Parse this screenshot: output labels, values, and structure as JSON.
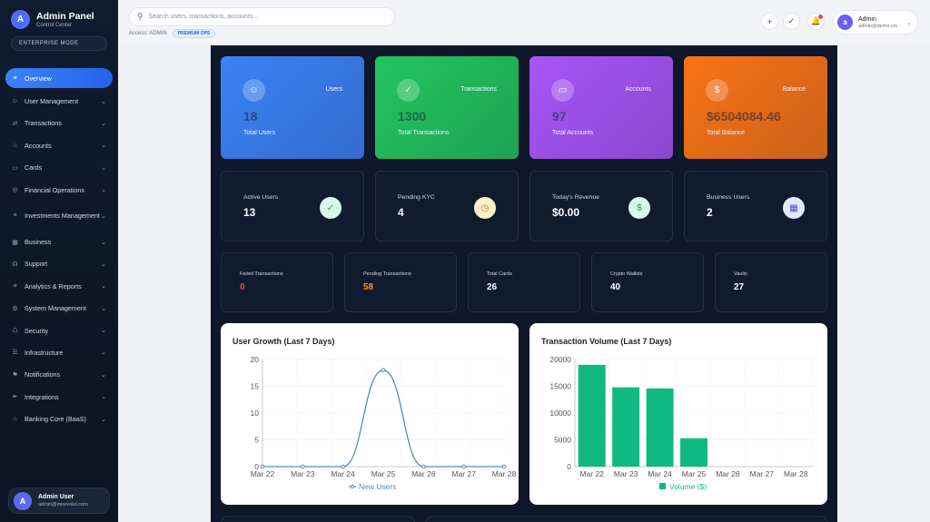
{
  "brand": {
    "logo_letter": "A",
    "title": "Admin Panel",
    "subtitle": "Control Center",
    "mode": "ENTERPRISE MODE"
  },
  "sidebar": {
    "items": [
      {
        "label": "Overview",
        "icon": "chart-icon",
        "active": true,
        "chevron": false
      },
      {
        "label": "User Management",
        "icon": "users-icon",
        "chevron": true
      },
      {
        "label": "Transactions",
        "icon": "exchange-icon",
        "chevron": true
      },
      {
        "label": "Accounts",
        "icon": "bank-icon",
        "chevron": true
      },
      {
        "label": "Cards",
        "icon": "card-icon",
        "chevron": true
      },
      {
        "label": "Financial Operations",
        "icon": "coins-icon",
        "chevron": true
      },
      {
        "label": "Investments Management",
        "icon": "chart-icon",
        "chevron": true,
        "tall": true
      },
      {
        "label": "Business",
        "icon": "building-icon",
        "chevron": true
      },
      {
        "label": "Support",
        "icon": "headset-icon",
        "chevron": true
      },
      {
        "label": "Analytics & Reports",
        "icon": "chart-icon",
        "chevron": true
      },
      {
        "label": "System Management",
        "icon": "gear-icon",
        "chevron": true
      },
      {
        "label": "Security",
        "icon": "lock-icon",
        "chevron": true
      },
      {
        "label": "Infrastructure",
        "icon": "server-icon",
        "chevron": true
      },
      {
        "label": "Notifications",
        "icon": "bell-icon",
        "chevron": true
      },
      {
        "label": "Integrations",
        "icon": "plug-icon",
        "chevron": true
      },
      {
        "label": "Banking Core (BaaS)",
        "icon": "bank-icon",
        "chevron": true
      }
    ],
    "user": {
      "avatar_letter": "A",
      "name": "Admin User",
      "email": "admin@mirevolut.com"
    }
  },
  "topbar": {
    "search_placeholder": "Search users, transactions, accounts...",
    "access_text": "Access: ADMIN",
    "ops_badge": "PREMIUM OPS",
    "admin": {
      "avatar_letter": "a",
      "name": "Admin",
      "email": "admin@demo.sm"
    }
  },
  "stats": [
    {
      "label": "Users",
      "value": "18",
      "sub": "Total Users",
      "icon": "users-icon",
      "color": "#3b82f6"
    },
    {
      "label": "Transactions",
      "value": "1300",
      "sub": "Total Transactions",
      "icon": "check-circle-icon",
      "color": "#22c55e"
    },
    {
      "label": "Accounts",
      "value": "97",
      "sub": "Total Accounts",
      "icon": "card-icon",
      "color": "#a855f7"
    },
    {
      "label": "Balance",
      "value": "$6504084.46",
      "sub": "Total Balance",
      "icon": "dollar-icon",
      "color": "#f97316"
    }
  ],
  "mid_stats": [
    {
      "label": "Active Users",
      "value": "13",
      "icon": "check-circle-icon",
      "icon_bg": "#d9f7e6",
      "icon_color": "#16a34a"
    },
    {
      "label": "Pending KYC",
      "value": "4",
      "icon": "clock-icon",
      "icon_bg": "#fdf0c4",
      "icon_color": "#b7791f"
    },
    {
      "label": "Today's Revenue",
      "value": "$0.00",
      "icon": "dollar-icon",
      "icon_bg": "#d9f7e6",
      "icon_color": "#16a34a"
    },
    {
      "label": "Business Users",
      "value": "2",
      "icon": "building-icon",
      "icon_bg": "#e3e8ff",
      "icon_color": "#4f46e5"
    }
  ],
  "small_stats": [
    {
      "label": "Failed Transactions",
      "value": "0",
      "color": "#ef4444"
    },
    {
      "label": "Pending Transactions",
      "value": "58",
      "color": "#f59e0b"
    },
    {
      "label": "Total Cards",
      "value": "26",
      "color": "#ffffff"
    },
    {
      "label": "Crypto Wallets",
      "value": "40",
      "color": "#ffffff"
    },
    {
      "label": "Vaults",
      "value": "27",
      "color": "#ffffff"
    }
  ],
  "chart_data": [
    {
      "type": "line",
      "title": "User Growth (Last 7 Days)",
      "categories": [
        "Mar 22",
        "Mar 23",
        "Mar 24",
        "Mar 25",
        "Mar 26",
        "Mar 27",
        "Mar 28"
      ],
      "series": [
        {
          "name": "New Users",
          "values": [
            0,
            0,
            0,
            18,
            0,
            0,
            0
          ],
          "color": "#4a90c8"
        }
      ],
      "ylim": [
        0,
        20
      ],
      "yticks": [
        0,
        5,
        10,
        15,
        20
      ],
      "grid": true,
      "legend": "bottom"
    },
    {
      "type": "bar",
      "title": "Transaction Volume (Last 7 Days)",
      "categories": [
        "Mar 22",
        "Mar 23",
        "Mar 24",
        "Mar 25",
        "Mar 26",
        "Mar 27",
        "Mar 28"
      ],
      "series": [
        {
          "name": "Volume ($)",
          "values": [
            19000,
            14800,
            14600,
            5300,
            0,
            0,
            0
          ],
          "color": "#10b981"
        }
      ],
      "ylim": [
        0,
        20000
      ],
      "yticks": [
        0,
        5000,
        10000,
        15000,
        20000
      ],
      "grid": true,
      "legend": "bottom"
    }
  ]
}
